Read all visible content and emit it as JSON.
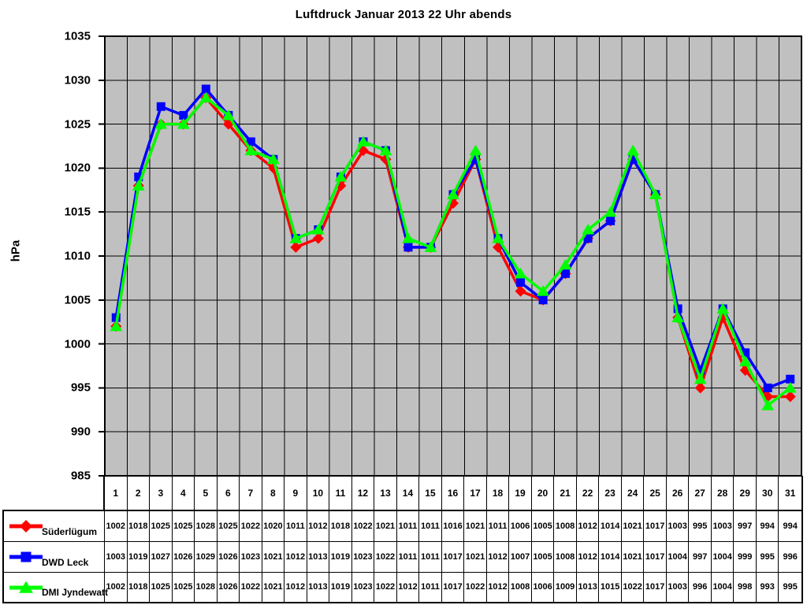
{
  "chart_data": {
    "type": "line",
    "title": "Luftdruck Januar 2013 22 Uhr abends",
    "xlabel": "",
    "ylabel": "hPa",
    "ylim": [
      985,
      1035
    ],
    "ytick_step": 5,
    "grid": true,
    "plot_bg": "#c0c0c0",
    "grid_color": "#000000",
    "legend_position": "table-left",
    "categories": [
      "1",
      "2",
      "3",
      "4",
      "5",
      "6",
      "7",
      "8",
      "9",
      "10",
      "11",
      "12",
      "13",
      "14",
      "15",
      "16",
      "17",
      "18",
      "19",
      "20",
      "21",
      "22",
      "23",
      "24",
      "25",
      "26",
      "27",
      "28",
      "29",
      "30",
      "31"
    ],
    "series": [
      {
        "name": "Süderlügum",
        "color": "#ff0000",
        "marker": "diamond",
        "values": [
          1002,
          1018,
          1025,
          1025,
          1028,
          1025,
          1022,
          1020,
          1011,
          1012,
          1018,
          1022,
          1021,
          1011,
          1011,
          1016,
          1021,
          1011,
          1006,
          1005,
          1008,
          1012,
          1014,
          1021,
          1017,
          1003,
          995,
          1003,
          997,
          994,
          994
        ]
      },
      {
        "name": "DWD Leck",
        "color": "#0000ff",
        "marker": "square",
        "values": [
          1003,
          1019,
          1027,
          1026,
          1029,
          1026,
          1023,
          1021,
          1012,
          1013,
          1019,
          1023,
          1022,
          1011,
          1011,
          1017,
          1021,
          1012,
          1007,
          1005,
          1008,
          1012,
          1014,
          1021,
          1017,
          1004,
          997,
          1004,
          999,
          995,
          996
        ]
      },
      {
        "name": "DMI Jyndewatt",
        "color": "#00ff00",
        "marker": "triangle",
        "values": [
          1002,
          1018,
          1025,
          1025,
          1028,
          1026,
          1022,
          1021,
          1012,
          1013,
          1019,
          1023,
          1022,
          1012,
          1011,
          1017,
          1022,
          1012,
          1008,
          1006,
          1009,
          1013,
          1015,
          1022,
          1017,
          1003,
          996,
          1004,
          998,
          993,
          995
        ]
      }
    ]
  }
}
